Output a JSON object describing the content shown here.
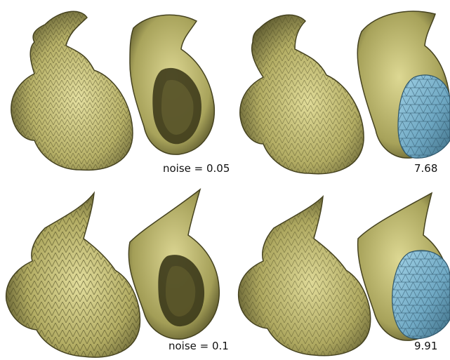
{
  "colors": {
    "mesh_yellow": "#d8d38a",
    "mesh_yellow_dark": "#6b6733",
    "mesh_yellow_shadow": "#3b381a",
    "patch_blue": "#78b3cd",
    "patch_blue_dark": "#3f6f86"
  },
  "labels": {
    "noise_top": "noise = 0.05",
    "noise_bottom": "noise = 0.1",
    "value_top": "7.68",
    "value_bottom": "9.91"
  }
}
